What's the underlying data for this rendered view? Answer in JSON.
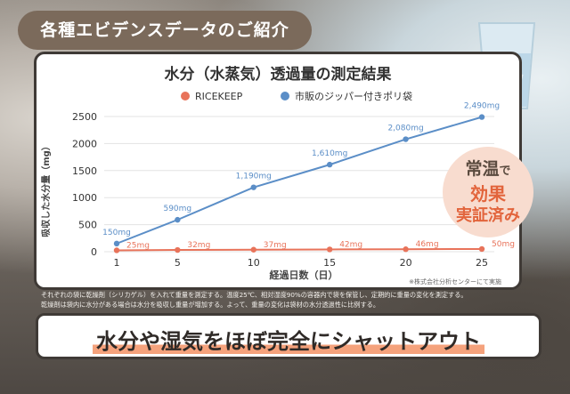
{
  "header": {
    "badge": "各種エビデンスデータのご紹介"
  },
  "chart_data": {
    "type": "line",
    "title": "水分（水蒸気）透過量の測定結果",
    "xlabel": "経過日数（日）",
    "ylabel": "吸収した水分量（mg）",
    "x": [
      1,
      5,
      10,
      15,
      20,
      25
    ],
    "ylim": [
      0,
      2500
    ],
    "yticks": [
      0,
      500,
      1000,
      1500,
      2000,
      2500
    ],
    "grid": true,
    "legend_position": "top",
    "series": [
      {
        "name": "RICEKEEP",
        "color": "#e8735a",
        "values": [
          25,
          32,
          37,
          42,
          46,
          50
        ],
        "labels": [
          "25mg",
          "32mg",
          "37mg",
          "42mg",
          "46mg",
          "50mg"
        ]
      },
      {
        "name": "市販のジッパー付きポリ袋",
        "color": "#5b8ec7",
        "values": [
          150,
          590,
          1190,
          1610,
          2080,
          2490
        ],
        "labels": [
          "150mg",
          "590mg",
          "1,190mg",
          "1,610mg",
          "2,080mg",
          "2,490mg"
        ]
      }
    ],
    "source_note": "※株式会社分析センターにて実施"
  },
  "callout": {
    "line1": "常温",
    "line1_suffix": "で",
    "line2": "効果",
    "line3": "実証済み"
  },
  "footnote": {
    "line1": "それぞれの袋に乾燥剤（シリカゲル）を入れて重量を測定する。温度25℃、相対湿度90%の容器内で袋を保管し、定期的に重量の変化を測定する。",
    "line2": "乾燥剤は袋内に水分がある場合は水分を吸収し重量が増加する。よって、重量の変化は袋材の水分透過性に比例する。"
  },
  "banner": {
    "text": "水分や湿気をほぼ完全にシャットアウト"
  }
}
